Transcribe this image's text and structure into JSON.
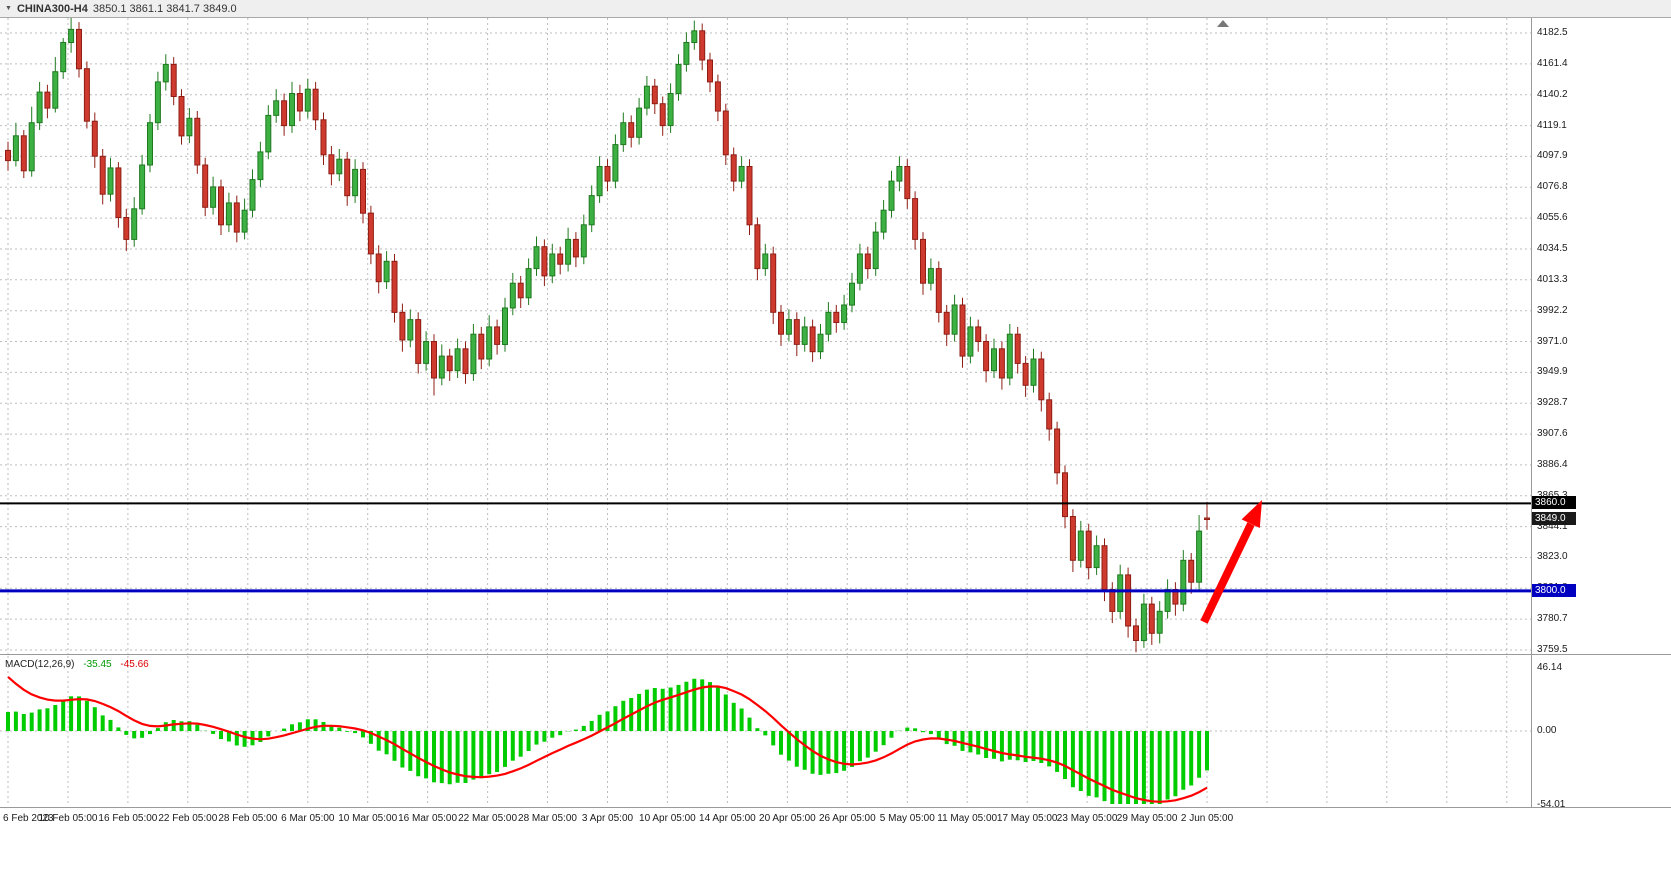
{
  "title_bar": {
    "symbol_period": "CHINA300-H4",
    "ohlc": "3850.1 3861.1 3841.7 3849.0"
  },
  "price_axis": {
    "labels": [
      "4182.5",
      "4161.4",
      "4140.2",
      "4119.1",
      "4097.9",
      "4076.8",
      "4055.6",
      "4034.5",
      "4013.3",
      "3992.2",
      "3971.0",
      "3949.9",
      "3928.7",
      "3907.6",
      "3886.4",
      "3865.3",
      "3844.1",
      "3823.0",
      "3801.8",
      "3780.7",
      "3759.5"
    ]
  },
  "time_axis": {
    "labels": [
      "6 Feb 2023",
      "10 Feb 05:00",
      "16 Feb 05:00",
      "22 Feb 05:00",
      "28 Feb 05:00",
      "6 Mar 05:00",
      "10 Mar 05:00",
      "16 Mar 05:00",
      "22 Mar 05:00",
      "28 Mar 05:00",
      "3 Apr 05:00",
      "10 Apr 05:00",
      "14 Apr 05:00",
      "20 Apr 05:00",
      "26 Apr 05:00",
      "5 May 05:00",
      "11 May 05:00",
      "17 May 05:00",
      "23 May 05:00",
      "29 May 05:00",
      "2 Jun 05:00"
    ]
  },
  "levels": {
    "resistance": {
      "value": "3860.0",
      "price": 3860.0,
      "color": "#000000"
    },
    "current_price": {
      "value": "3849.0",
      "price": 3849.0,
      "color": "#1a1a1a"
    },
    "support": {
      "value": "3800.0",
      "price": 3800.0,
      "color": "#0000c0"
    }
  },
  "macd_panel": {
    "label": "MACD(12,26,9)",
    "main_value": "-35.45",
    "signal_value": "-45.66",
    "scale": {
      "max": "46.14",
      "zero": "0.00",
      "min": "-54.01"
    }
  },
  "colors": {
    "bull": "#3cb043",
    "bull_border": "#1f7a1f",
    "bear": "#ce3b2e",
    "bear_border": "#8f1d14",
    "grid": "#bdbdbd",
    "macd_hist": "#00cc00",
    "macd_signal": "#ff0000",
    "resistance": "#000000",
    "support": "#0000c0",
    "current": "#1a1a1a",
    "arrow": "#ff0000"
  },
  "chart_data": {
    "type": "candlestick",
    "title": "CHINA300-H4",
    "timeframe": "H4",
    "price_axis_range": [
      3759.5,
      4182.5
    ],
    "last_ohlc": {
      "open": 3850.1,
      "high": 3861.1,
      "low": 3841.7,
      "close": 3849.0
    },
    "overlays": [
      {
        "type": "hline",
        "price": 3860.0,
        "color": "#000000",
        "width": 2
      },
      {
        "type": "hline",
        "price": 3800.0,
        "color": "#0000c0",
        "width": 3
      },
      {
        "type": "arrow",
        "direction": "up-right",
        "from_price": 3795,
        "to_price": 3872,
        "color": "#ff0000"
      }
    ],
    "candles": [
      [
        4102,
        4108,
        4088,
        4095
      ],
      [
        4095,
        4121,
        4091,
        4112
      ],
      [
        4112,
        4116,
        4083,
        4088
      ],
      [
        4088,
        4132,
        4084,
        4121
      ],
      [
        4121,
        4149,
        4116,
        4142
      ],
      [
        4142,
        4147,
        4124,
        4131
      ],
      [
        4131,
        4166,
        4128,
        4156
      ],
      [
        4156,
        4179,
        4151,
        4176
      ],
      [
        4176,
        4193,
        4169,
        4185
      ],
      [
        4185,
        4190,
        4152,
        4158
      ],
      [
        4158,
        4163,
        4117,
        4122
      ],
      [
        4122,
        4128,
        4090,
        4098
      ],
      [
        4098,
        4103,
        4065,
        4072
      ],
      [
        4072,
        4097,
        4067,
        4090
      ],
      [
        4090,
        4094,
        4049,
        4056
      ],
      [
        4056,
        4062,
        4033,
        4041
      ],
      [
        4041,
        4070,
        4036,
        4062
      ],
      [
        4062,
        4099,
        4058,
        4092
      ],
      [
        4092,
        4127,
        4087,
        4121
      ],
      [
        4121,
        4156,
        4116,
        4149
      ],
      [
        4149,
        4168,
        4143,
        4161
      ],
      [
        4161,
        4166,
        4133,
        4139
      ],
      [
        4139,
        4144,
        4106,
        4112
      ],
      [
        4112,
        4131,
        4107,
        4124
      ],
      [
        4124,
        4129,
        4086,
        4092
      ],
      [
        4092,
        4097,
        4057,
        4063
      ],
      [
        4063,
        4084,
        4058,
        4077
      ],
      [
        4077,
        4082,
        4044,
        4051
      ],
      [
        4051,
        4073,
        4046,
        4066
      ],
      [
        4066,
        4071,
        4039,
        4046
      ],
      [
        4046,
        4069,
        4041,
        4061
      ],
      [
        4061,
        4089,
        4056,
        4082
      ],
      [
        4082,
        4108,
        4077,
        4101
      ],
      [
        4101,
        4133,
        4096,
        4126
      ],
      [
        4126,
        4144,
        4121,
        4136
      ],
      [
        4136,
        4141,
        4112,
        4119
      ],
      [
        4119,
        4149,
        4114,
        4141
      ],
      [
        4141,
        4147,
        4122,
        4129
      ],
      [
        4129,
        4151,
        4124,
        4144
      ],
      [
        4144,
        4149,
        4116,
        4123
      ],
      [
        4123,
        4128,
        4092,
        4099
      ],
      [
        4099,
        4105,
        4078,
        4086
      ],
      [
        4086,
        4103,
        4081,
        4096
      ],
      [
        4096,
        4101,
        4064,
        4071
      ],
      [
        4071,
        4096,
        4066,
        4089
      ],
      [
        4089,
        4094,
        4052,
        4059
      ],
      [
        4059,
        4064,
        4024,
        4031
      ],
      [
        4031,
        4037,
        4004,
        4012
      ],
      [
        4012,
        4033,
        4007,
        4026
      ],
      [
        4026,
        4031,
        3984,
        3991
      ],
      [
        3991,
        3997,
        3964,
        3972
      ],
      [
        3972,
        3993,
        3967,
        3986
      ],
      [
        3986,
        3991,
        3949,
        3956
      ],
      [
        3956,
        3978,
        3951,
        3971
      ],
      [
        3971,
        3976,
        3934,
        3946
      ],
      [
        3946,
        3969,
        3941,
        3961
      ],
      [
        3961,
        3966,
        3944,
        3951
      ],
      [
        3951,
        3973,
        3946,
        3966
      ],
      [
        3966,
        3971,
        3942,
        3949
      ],
      [
        3949,
        3983,
        3944,
        3976
      ],
      [
        3976,
        3981,
        3952,
        3959
      ],
      [
        3959,
        3989,
        3954,
        3981
      ],
      [
        3981,
        3986,
        3962,
        3969
      ],
      [
        3969,
        4001,
        3964,
        3994
      ],
      [
        3994,
        4018,
        3989,
        4011
      ],
      [
        4011,
        4016,
        3994,
        4001
      ],
      [
        4001,
        4028,
        3996,
        4021
      ],
      [
        4021,
        4043,
        4016,
        4036
      ],
      [
        4036,
        4041,
        4009,
        4016
      ],
      [
        4016,
        4038,
        4011,
        4031
      ],
      [
        4031,
        4036,
        4017,
        4024
      ],
      [
        4024,
        4049,
        4019,
        4041
      ],
      [
        4041,
        4046,
        4022,
        4029
      ],
      [
        4029,
        4058,
        4024,
        4051
      ],
      [
        4051,
        4078,
        4046,
        4071
      ],
      [
        4071,
        4098,
        4066,
        4091
      ],
      [
        4091,
        4096,
        4074,
        4081
      ],
      [
        4081,
        4113,
        4076,
        4106
      ],
      [
        4106,
        4128,
        4101,
        4121
      ],
      [
        4121,
        4126,
        4104,
        4111
      ],
      [
        4111,
        4138,
        4106,
        4131
      ],
      [
        4131,
        4153,
        4126,
        4146
      ],
      [
        4146,
        4151,
        4127,
        4134
      ],
      [
        4134,
        4139,
        4112,
        4119
      ],
      [
        4119,
        4148,
        4114,
        4141
      ],
      [
        4141,
        4168,
        4136,
        4161
      ],
      [
        4161,
        4183,
        4156,
        4176
      ],
      [
        4176,
        4191,
        4171,
        4184
      ],
      [
        4184,
        4189,
        4157,
        4164
      ],
      [
        4164,
        4169,
        4142,
        4149
      ],
      [
        4149,
        4154,
        4122,
        4129
      ],
      [
        4129,
        4134,
        4092,
        4099
      ],
      [
        4099,
        4104,
        4074,
        4081
      ],
      [
        4081,
        4098,
        4076,
        4091
      ],
      [
        4091,
        4096,
        4044,
        4051
      ],
      [
        4051,
        4056,
        4013,
        4021
      ],
      [
        4021,
        4038,
        4016,
        4031
      ],
      [
        4031,
        4036,
        3983,
        3991
      ],
      [
        3991,
        3996,
        3968,
        3976
      ],
      [
        3976,
        3993,
        3971,
        3986
      ],
      [
        3986,
        3991,
        3961,
        3969
      ],
      [
        3969,
        3988,
        3964,
        3981
      ],
      [
        3981,
        3986,
        3957,
        3964
      ],
      [
        3964,
        3983,
        3959,
        3976
      ],
      [
        3976,
        3998,
        3971,
        3991
      ],
      [
        3991,
        3996,
        3977,
        3984
      ],
      [
        3984,
        4003,
        3979,
        3996
      ],
      [
        3996,
        4018,
        3991,
        4011
      ],
      [
        4011,
        4038,
        4006,
        4031
      ],
      [
        4031,
        4036,
        4014,
        4021
      ],
      [
        4021,
        4053,
        4016,
        4046
      ],
      [
        4046,
        4068,
        4041,
        4061
      ],
      [
        4061,
        4088,
        4056,
        4081
      ],
      [
        4081,
        4098,
        4074,
        4091
      ],
      [
        4091,
        4096,
        4062,
        4069
      ],
      [
        4069,
        4074,
        4034,
        4041
      ],
      [
        4041,
        4046,
        4003,
        4011
      ],
      [
        4011,
        4028,
        4006,
        4021
      ],
      [
        4021,
        4026,
        3984,
        3991
      ],
      [
        3991,
        3996,
        3968,
        3976
      ],
      [
        3976,
        4003,
        3971,
        3996
      ],
      [
        3996,
        4001,
        3953,
        3961
      ],
      [
        3961,
        3988,
        3956,
        3981
      ],
      [
        3981,
        3986,
        3964,
        3971
      ],
      [
        3971,
        3976,
        3943,
        3951
      ],
      [
        3951,
        3973,
        3946,
        3966
      ],
      [
        3966,
        3971,
        3938,
        3946
      ],
      [
        3946,
        3983,
        3941,
        3976
      ],
      [
        3976,
        3981,
        3949,
        3956
      ],
      [
        3956,
        3961,
        3933,
        3941
      ],
      [
        3941,
        3966,
        3936,
        3959
      ],
      [
        3959,
        3964,
        3923,
        3931
      ],
      [
        3931,
        3936,
        3903,
        3911
      ],
      [
        3911,
        3916,
        3873,
        3881
      ],
      [
        3881,
        3886,
        3843,
        3851
      ],
      [
        3851,
        3856,
        3813,
        3821
      ],
      [
        3821,
        3848,
        3816,
        3841
      ],
      [
        3841,
        3846,
        3808,
        3816
      ],
      [
        3816,
        3838,
        3811,
        3831
      ],
      [
        3831,
        3836,
        3793,
        3801
      ],
      [
        3801,
        3806,
        3778,
        3786
      ],
      [
        3786,
        3818,
        3781,
        3811
      ],
      [
        3811,
        3816,
        3768,
        3776
      ],
      [
        3776,
        3781,
        3758,
        3766
      ],
      [
        3766,
        3798,
        3761,
        3791
      ],
      [
        3791,
        3796,
        3763,
        3771
      ],
      [
        3771,
        3793,
        3764,
        3786
      ],
      [
        3786,
        3808,
        3781,
        3801
      ],
      [
        3801,
        3806,
        3783,
        3791
      ],
      [
        3791,
        3828,
        3786,
        3821
      ],
      [
        3821,
        3826,
        3798,
        3806
      ],
      [
        3806,
        3852,
        3801,
        3841
      ],
      [
        3850,
        3861,
        3842,
        3849
      ]
    ],
    "indicator": {
      "name": "MACD",
      "params": [
        12,
        26,
        9
      ],
      "main": -35.45,
      "signal": -45.66,
      "range": [
        -54.01,
        46.14
      ],
      "seed_main": 15,
      "seed_signal": 46
    }
  }
}
